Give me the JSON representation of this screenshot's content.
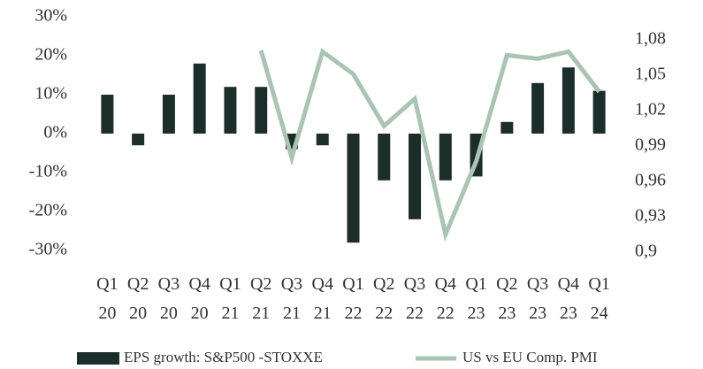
{
  "chart_data": {
    "type": "bar_line",
    "categories": [
      "Q1 20",
      "Q2 20",
      "Q3 20",
      "Q4 20",
      "Q1 21",
      "Q2 21",
      "Q3 21",
      "Q4 21",
      "Q1 22",
      "Q2 22",
      "Q3 22",
      "Q4 22",
      "Q1 23",
      "Q2 23",
      "Q3 23",
      "Q4 23",
      "Q1 24"
    ],
    "series": [
      {
        "name": "EPS growth: S&P500 -STOXXE",
        "type": "bar",
        "color": "#1c2e2a",
        "axis": "y",
        "values": [
          10,
          -3,
          10,
          18,
          12,
          12,
          -4,
          -3,
          -28,
          -12,
          -22,
          -12,
          -11,
          3,
          13,
          17,
          11
        ]
      },
      {
        "name": "US vs EU Comp. PMI",
        "type": "line",
        "color": "#a9c4b3",
        "axis": "y2",
        "values": [
          null,
          null,
          null,
          null,
          null,
          1.071,
          0.98,
          1.07,
          1.051,
          1.007,
          1.03,
          0.915,
          0.977,
          1.067,
          1.064,
          1.07,
          1.036
        ]
      }
    ],
    "ylim": [
      -30,
      30
    ],
    "yticks": [
      {
        "value": -30,
        "label": "-30%"
      },
      {
        "value": -20,
        "label": "-20%"
      },
      {
        "value": -10,
        "label": "-10%"
      },
      {
        "value": 0,
        "label": "0%"
      },
      {
        "value": 10,
        "label": "10%"
      },
      {
        "value": 20,
        "label": "20%"
      },
      {
        "value": 30,
        "label": "30%"
      }
    ],
    "y2lim": [
      0.9,
      1.08
    ],
    "y2ticks": [
      {
        "value": 0.9,
        "label": "0,9"
      },
      {
        "value": 0.93,
        "label": "0,93"
      },
      {
        "value": 0.96,
        "label": "0,96"
      },
      {
        "value": 0.99,
        "label": "0,99"
      },
      {
        "value": 1.02,
        "label": "1,02"
      },
      {
        "value": 1.05,
        "label": "1,05"
      },
      {
        "value": 1.08,
        "label": "1,08"
      }
    ]
  }
}
